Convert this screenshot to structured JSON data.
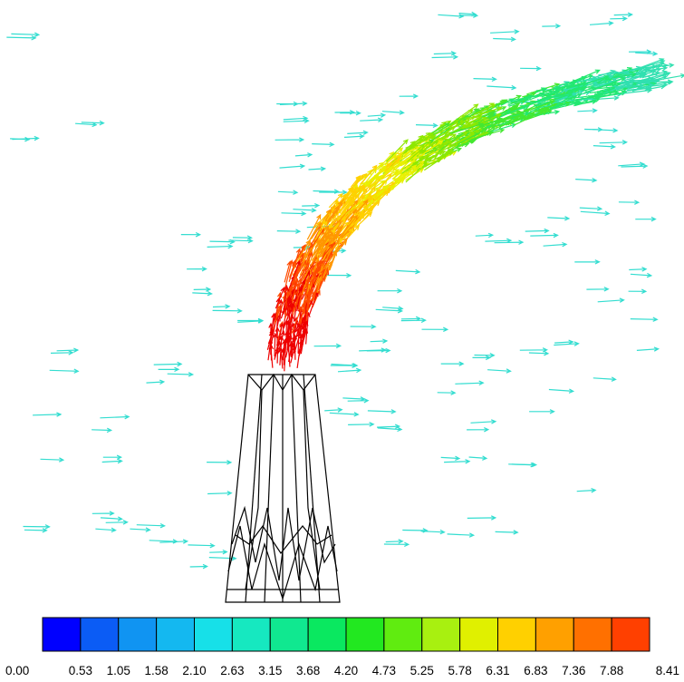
{
  "colorbar": {
    "labels": [
      "0.00",
      "0.53",
      "1.05",
      "1.58",
      "2.10",
      "2.63",
      "3.15",
      "3.68",
      "4.20",
      "4.73",
      "5.25",
      "5.78",
      "6.31",
      "6.83",
      "7.36",
      "7.88",
      "8.41"
    ],
    "colors": [
      "#0000ff",
      "#0b5cf5",
      "#1094f2",
      "#14b8f0",
      "#17e0e8",
      "#16e8c0",
      "#10e890",
      "#0ae860",
      "#22e820",
      "#60ec10",
      "#a8f010",
      "#e0f000",
      "#ffd000",
      "#ffa000",
      "#ff7000",
      "#ff4000"
    ]
  },
  "vector_colors": {
    "ambient": "#33ddd0",
    "plume_ramp": [
      "#ee0000",
      "#ff4a00",
      "#ff9600",
      "#ffd000",
      "#e8f000",
      "#8ee800",
      "#44e830",
      "#22e870",
      "#30e0b0"
    ]
  },
  "chimney": {
    "outline_color": "#000000"
  }
}
